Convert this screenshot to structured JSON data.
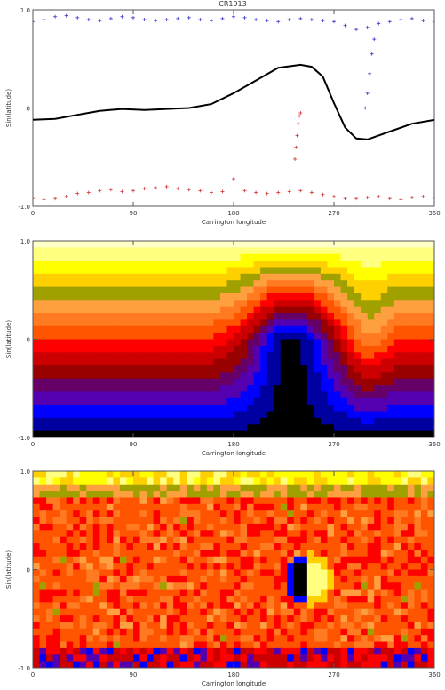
{
  "figure": {
    "title": "CR1913"
  },
  "palette": {
    "synoptic": [
      "#000000",
      "#0000a0",
      "#0000ff",
      "#5500b0",
      "#660066",
      "#990000",
      "#cc0000",
      "#ff0000",
      "#ff5500",
      "#ff7a20",
      "#ffa040",
      "#a0a000",
      "#ffd000",
      "#ffff00",
      "#ffff80",
      "#ffffc8"
    ],
    "line": "#000000",
    "north_points": "#3333cc",
    "south_points": "#cc3333"
  },
  "chart_data": [
    {
      "type": "scatter",
      "title": "CR1913",
      "xlabel": "Carrington longitude",
      "ylabel": "Sin(latitude)",
      "xlim": [
        0,
        360
      ],
      "ylim": [
        -1.0,
        1.0
      ],
      "xticks": [
        "0",
        "90",
        "180",
        "270",
        "360"
      ],
      "yticks": [
        "-1.0",
        "0",
        "1.0"
      ],
      "series": [
        {
          "kind": "line",
          "color": "#000000",
          "x": [
            0,
            20,
            40,
            60,
            80,
            100,
            120,
            140,
            160,
            180,
            200,
            220,
            240,
            250,
            260,
            270,
            280,
            290,
            300,
            320,
            340,
            360
          ],
          "y": [
            -0.12,
            -0.11,
            -0.07,
            -0.03,
            -0.01,
            -0.02,
            -0.01,
            0.0,
            0.04,
            0.15,
            0.28,
            0.41,
            0.44,
            0.42,
            0.32,
            0.05,
            -0.2,
            -0.31,
            -0.32,
            -0.24,
            -0.16,
            -0.12
          ]
        },
        {
          "kind": "points",
          "color": "#3333cc",
          "marker": "+",
          "x": [
            0,
            10,
            20,
            30,
            40,
            50,
            60,
            70,
            80,
            90,
            100,
            110,
            120,
            130,
            140,
            150,
            160,
            170,
            180,
            190,
            200,
            210,
            220,
            230,
            240,
            250,
            260,
            270,
            280,
            290,
            300,
            310,
            320,
            330,
            340,
            350,
            360,
            298,
            300,
            302,
            304,
            306
          ],
          "y": [
            0.88,
            0.9,
            0.93,
            0.94,
            0.92,
            0.9,
            0.89,
            0.91,
            0.93,
            0.92,
            0.9,
            0.89,
            0.9,
            0.91,
            0.92,
            0.9,
            0.89,
            0.91,
            0.93,
            0.92,
            0.9,
            0.89,
            0.88,
            0.9,
            0.91,
            0.9,
            0.89,
            0.88,
            0.84,
            0.8,
            0.82,
            0.86,
            0.88,
            0.9,
            0.91,
            0.89,
            0.88,
            0.0,
            0.15,
            0.35,
            0.55,
            0.7
          ]
        },
        {
          "kind": "points",
          "color": "#cc3333",
          "marker": "+",
          "x": [
            0,
            10,
            20,
            30,
            40,
            50,
            60,
            70,
            80,
            90,
            100,
            110,
            120,
            130,
            140,
            150,
            160,
            170,
            180,
            190,
            200,
            210,
            220,
            230,
            240,
            250,
            260,
            270,
            280,
            290,
            300,
            310,
            320,
            330,
            340,
            350,
            360,
            235,
            236,
            237,
            238,
            239,
            240
          ],
          "y": [
            -0.92,
            -0.93,
            -0.92,
            -0.9,
            -0.87,
            -0.86,
            -0.84,
            -0.83,
            -0.85,
            -0.84,
            -0.82,
            -0.81,
            -0.8,
            -0.82,
            -0.83,
            -0.84,
            -0.86,
            -0.85,
            -0.72,
            -0.84,
            -0.86,
            -0.87,
            -0.86,
            -0.85,
            -0.84,
            -0.86,
            -0.88,
            -0.9,
            -0.92,
            -0.92,
            -0.91,
            -0.9,
            -0.92,
            -0.93,
            -0.91,
            -0.9,
            -0.92,
            -0.52,
            -0.4,
            -0.28,
            -0.16,
            -0.08,
            -0.05
          ]
        }
      ]
    },
    {
      "type": "heatmap",
      "xlabel": "Carrington longitude",
      "ylabel": "Sin(latitude)",
      "xlim": [
        0,
        360
      ],
      "ylim": [
        -1.0,
        1.0
      ],
      "xticks": [
        "0",
        "90",
        "180",
        "270",
        "360"
      ],
      "yticks": [
        "-1.0",
        "0",
        "1.0"
      ],
      "colormap": "blue-red-yellow",
      "cols": 60,
      "rows": 30,
      "field": "smooth",
      "peak_longitude": 232,
      "peak_width": 38,
      "peak_height": 0.55,
      "dip_longitude": 300,
      "dip_depth": 0.22
    },
    {
      "type": "heatmap",
      "xlabel": "Carrington longitude",
      "ylabel": "Sin(latitude)",
      "xlim": [
        0,
        360
      ],
      "ylim": [
        -1.0,
        1.0
      ],
      "xticks": [
        "0",
        "90",
        "180",
        "270",
        "360"
      ],
      "yticks": [
        "-1.0",
        "0",
        "1.0"
      ],
      "colormap": "blue-red-yellow",
      "cols": 60,
      "rows": 30,
      "field": "noisy",
      "active_region_longitude": 248,
      "active_region_latitude": -0.1
    }
  ]
}
